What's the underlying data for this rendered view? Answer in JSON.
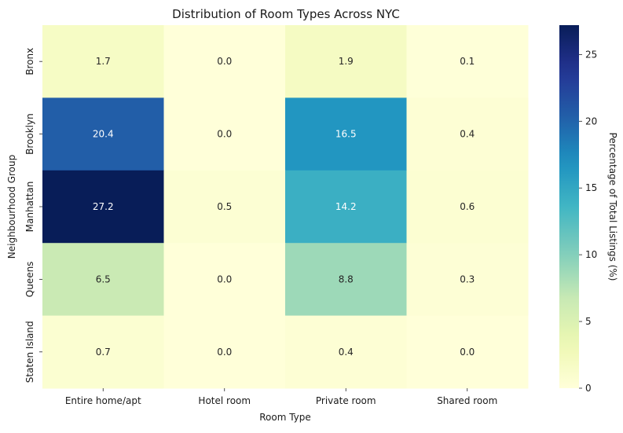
{
  "chart_data": {
    "type": "heatmap",
    "title": "Distribution of Room Types Across NYC",
    "xlabel": "Room Type",
    "ylabel": "Neighbourhood Group",
    "x_categories": [
      "Entire home/apt",
      "Hotel room",
      "Private room",
      "Shared room"
    ],
    "y_categories": [
      "Bronx",
      "Brooklyn",
      "Manhattan",
      "Queens",
      "Staten Island"
    ],
    "values": [
      [
        1.7,
        0.0,
        1.9,
        0.1
      ],
      [
        20.4,
        0.0,
        16.5,
        0.4
      ],
      [
        27.2,
        0.5,
        14.2,
        0.6
      ],
      [
        6.5,
        0.0,
        8.8,
        0.3
      ],
      [
        0.7,
        0.0,
        0.4,
        0.0
      ]
    ],
    "colormap": "YlGnBu",
    "colorbar": {
      "label": "Percentage of Total Listings (%)",
      "min": 0,
      "max": 27.2,
      "ticks": [
        0,
        5,
        10,
        15,
        20,
        25
      ]
    },
    "annotation_colors": {
      "dark": "#262626",
      "light": "#ffffff"
    }
  }
}
